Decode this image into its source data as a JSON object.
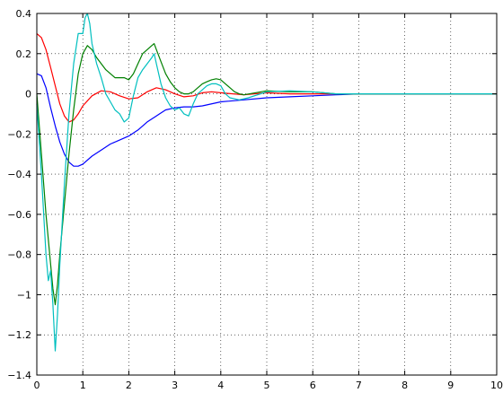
{
  "chart_data": {
    "type": "line",
    "xlim": [
      0,
      10
    ],
    "ylim": [
      -1.4,
      0.4
    ],
    "grid": true,
    "x_ticks": [
      0,
      1,
      2,
      3,
      4,
      5,
      6,
      7,
      8,
      9,
      10
    ],
    "y_ticks": [
      0.4,
      0.2,
      0,
      -0.2,
      -0.4,
      -0.6,
      -0.8,
      -1,
      -1.2,
      -1.4
    ],
    "x_tick_labels": [
      "0",
      "1",
      "2",
      "3",
      "4",
      "5",
      "6",
      "7",
      "8",
      "9",
      "10"
    ],
    "y_tick_labels": [
      "0.4",
      "0.2",
      "0",
      "−0.2",
      "−0.4",
      "−0.6",
      "−0.8",
      "−1",
      "−1.2",
      "−1.4"
    ],
    "series": [
      {
        "color": "#0000ff",
        "x": [
          0,
          0.1,
          0.2,
          0.3,
          0.4,
          0.5,
          0.6,
          0.7,
          0.8,
          0.9,
          1.0,
          1.2,
          1.4,
          1.6,
          1.8,
          2.0,
          2.2,
          2.4,
          2.6,
          2.8,
          3.0,
          3.2,
          3.4,
          3.6,
          4.0,
          4.5,
          5.0,
          5.5,
          6.0,
          6.5,
          7.0,
          8.0,
          9.0,
          10.0
        ],
        "y": [
          0.1,
          0.09,
          0.03,
          -0.07,
          -0.16,
          -0.24,
          -0.3,
          -0.34,
          -0.36,
          -0.36,
          -0.35,
          -0.31,
          -0.28,
          -0.25,
          -0.23,
          -0.21,
          -0.18,
          -0.14,
          -0.11,
          -0.08,
          -0.07,
          -0.065,
          -0.065,
          -0.06,
          -0.04,
          -0.03,
          -0.02,
          -0.015,
          -0.01,
          -0.005,
          0,
          0,
          0,
          0
        ]
      },
      {
        "color": "#ff0000",
        "x": [
          0,
          0.1,
          0.2,
          0.3,
          0.4,
          0.5,
          0.6,
          0.7,
          0.8,
          0.9,
          1.0,
          1.2,
          1.4,
          1.6,
          1.8,
          2.0,
          2.2,
          2.4,
          2.6,
          2.8,
          3.0,
          3.2,
          3.4,
          3.6,
          3.8,
          4.0,
          4.5,
          5.0,
          5.5,
          6.0,
          6.5,
          7.0,
          8.0,
          9.0,
          10.0
        ],
        "y": [
          0.3,
          0.28,
          0.22,
          0.13,
          0.04,
          -0.05,
          -0.11,
          -0.14,
          -0.13,
          -0.1,
          -0.06,
          -0.01,
          0.015,
          0.01,
          -0.01,
          -0.025,
          -0.02,
          0.01,
          0.03,
          0.02,
          0,
          -0.015,
          -0.01,
          0.005,
          0.01,
          0.005,
          -0.005,
          0.005,
          0,
          0,
          0,
          0,
          0,
          0,
          0
        ]
      },
      {
        "color": "#008000",
        "x": [
          0,
          0.1,
          0.2,
          0.3,
          0.35,
          0.4,
          0.45,
          0.5,
          0.6,
          0.7,
          0.8,
          0.9,
          1.0,
          1.1,
          1.2,
          1.3,
          1.5,
          1.7,
          1.9,
          2.0,
          2.1,
          2.2,
          2.3,
          2.4,
          2.5,
          2.55,
          2.6,
          2.7,
          2.8,
          2.9,
          3.0,
          3.1,
          3.2,
          3.3,
          3.4,
          3.5,
          3.6,
          3.7,
          3.8,
          3.9,
          4.0,
          4.1,
          4.2,
          4.3,
          4.4,
          4.5,
          5.0,
          5.5,
          6.0,
          6.5,
          7.0,
          8.0,
          9.0,
          10.0
        ],
        "y": [
          0,
          -0.3,
          -0.6,
          -0.85,
          -0.97,
          -1.05,
          -0.95,
          -0.8,
          -0.55,
          -0.3,
          -0.08,
          0.1,
          0.2,
          0.24,
          0.22,
          0.18,
          0.12,
          0.08,
          0.08,
          0.07,
          0.1,
          0.15,
          0.2,
          0.22,
          0.24,
          0.25,
          0.22,
          0.16,
          0.1,
          0.06,
          0.03,
          0.01,
          0,
          0,
          0.01,
          0.03,
          0.05,
          0.06,
          0.07,
          0.075,
          0.07,
          0.05,
          0.03,
          0.01,
          0,
          -0.005,
          0.015,
          0.01,
          0.01,
          0,
          0,
          0,
          0,
          0
        ]
      },
      {
        "color": "#00bfbf",
        "x": [
          0,
          0.1,
          0.2,
          0.25,
          0.3,
          0.35,
          0.4,
          0.45,
          0.5,
          0.6,
          0.7,
          0.8,
          0.9,
          1.0,
          1.05,
          1.1,
          1.15,
          1.2,
          1.3,
          1.4,
          1.5,
          1.6,
          1.7,
          1.8,
          1.9,
          2.0,
          2.1,
          2.2,
          2.3,
          2.4,
          2.5,
          2.55,
          2.6,
          2.7,
          2.8,
          2.9,
          3.0,
          3.1,
          3.2,
          3.3,
          3.4,
          3.5,
          3.6,
          3.7,
          3.8,
          3.9,
          4.0,
          4.1,
          4.2,
          4.4,
          4.6,
          5.0,
          5.5,
          6.0,
          6.5,
          7.0,
          8.0,
          9.0,
          10.0
        ],
        "y": [
          -0.05,
          -0.4,
          -0.8,
          -0.93,
          -0.88,
          -1.05,
          -1.28,
          -1.1,
          -0.85,
          -0.45,
          -0.1,
          0.15,
          0.3,
          0.3,
          0.38,
          0.4,
          0.35,
          0.25,
          0.15,
          0.08,
          0,
          -0.04,
          -0.08,
          -0.1,
          -0.14,
          -0.12,
          -0.01,
          0.08,
          0.12,
          0.15,
          0.18,
          0.2,
          0.15,
          0.05,
          -0.02,
          -0.06,
          -0.08,
          -0.07,
          -0.1,
          -0.11,
          -0.05,
          0,
          0.02,
          0.04,
          0.05,
          0.05,
          0.04,
          0,
          -0.02,
          -0.03,
          -0.02,
          0.01,
          0.015,
          0.01,
          0,
          0,
          0,
          0,
          0
        ]
      }
    ]
  }
}
